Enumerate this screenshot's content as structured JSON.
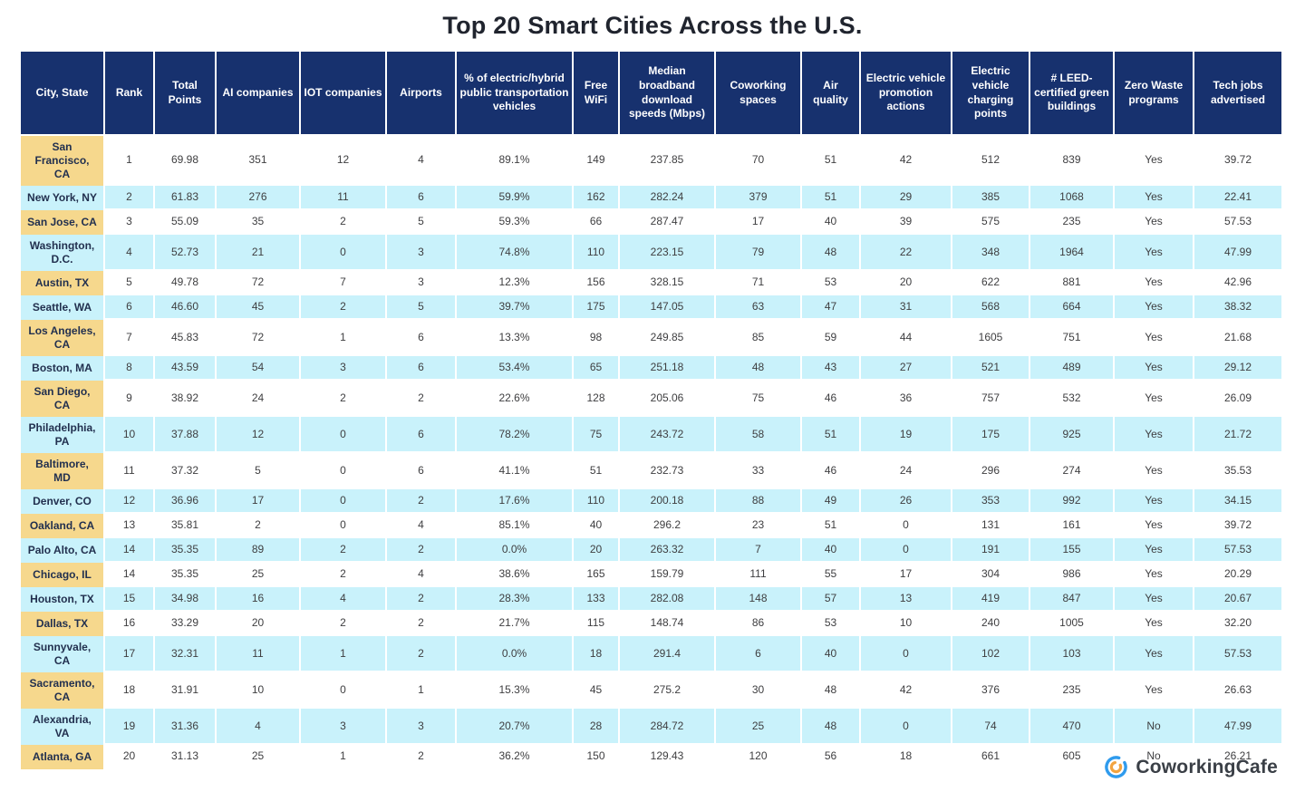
{
  "title": "Top 20 Smart Cities Across the U.S.",
  "brand": {
    "name": "CoworkingCafe"
  },
  "icons": {
    "logo": "coworkingcafe-logo"
  },
  "colors": {
    "header_bg": "#17316e",
    "city_column_bg": "#f6d88d",
    "row_alt_bg": "#c9f2fb",
    "row_bg": "#ffffff",
    "logo_blue": "#2f9bed",
    "logo_orange": "#f2a440"
  },
  "chart_data": {
    "type": "table",
    "title": "Top 20 Smart Cities Across the U.S.",
    "columns": [
      "City, State",
      "Rank",
      "Total Points",
      "AI companies",
      "IOT companies",
      "Airports",
      "% of electric/hybrid public transportation vehicles",
      "Free WiFi",
      "Median broadband download speeds (Mbps)",
      "Coworking spaces",
      "Air quality",
      "Electric vehicle promotion actions",
      "Electric vehicle charging points",
      "# LEED-certified green buildings",
      "Zero Waste programs",
      "Tech jobs advertised"
    ],
    "rows": [
      [
        "San Francisco, CA",
        "1",
        "69.98",
        "351",
        "12",
        "4",
        "89.1%",
        "149",
        "237.85",
        "70",
        "51",
        "42",
        "512",
        "839",
        "Yes",
        "39.72"
      ],
      [
        "New York, NY",
        "2",
        "61.83",
        "276",
        "11",
        "6",
        "59.9%",
        "162",
        "282.24",
        "379",
        "51",
        "29",
        "385",
        "1068",
        "Yes",
        "22.41"
      ],
      [
        "San Jose, CA",
        "3",
        "55.09",
        "35",
        "2",
        "5",
        "59.3%",
        "66",
        "287.47",
        "17",
        "40",
        "39",
        "575",
        "235",
        "Yes",
        "57.53"
      ],
      [
        "Washington, D.C.",
        "4",
        "52.73",
        "21",
        "0",
        "3",
        "74.8%",
        "110",
        "223.15",
        "79",
        "48",
        "22",
        "348",
        "1964",
        "Yes",
        "47.99"
      ],
      [
        "Austin, TX",
        "5",
        "49.78",
        "72",
        "7",
        "3",
        "12.3%",
        "156",
        "328.15",
        "71",
        "53",
        "20",
        "622",
        "881",
        "Yes",
        "42.96"
      ],
      [
        "Seattle, WA",
        "6",
        "46.60",
        "45",
        "2",
        "5",
        "39.7%",
        "175",
        "147.05",
        "63",
        "47",
        "31",
        "568",
        "664",
        "Yes",
        "38.32"
      ],
      [
        "Los Angeles, CA",
        "7",
        "45.83",
        "72",
        "1",
        "6",
        "13.3%",
        "98",
        "249.85",
        "85",
        "59",
        "44",
        "1605",
        "751",
        "Yes",
        "21.68"
      ],
      [
        "Boston, MA",
        "8",
        "43.59",
        "54",
        "3",
        "6",
        "53.4%",
        "65",
        "251.18",
        "48",
        "43",
        "27",
        "521",
        "489",
        "Yes",
        "29.12"
      ],
      [
        "San Diego, CA",
        "9",
        "38.92",
        "24",
        "2",
        "2",
        "22.6%",
        "128",
        "205.06",
        "75",
        "46",
        "36",
        "757",
        "532",
        "Yes",
        "26.09"
      ],
      [
        "Philadelphia, PA",
        "10",
        "37.88",
        "12",
        "0",
        "6",
        "78.2%",
        "75",
        "243.72",
        "58",
        "51",
        "19",
        "175",
        "925",
        "Yes",
        "21.72"
      ],
      [
        "Baltimore, MD",
        "11",
        "37.32",
        "5",
        "0",
        "6",
        "41.1%",
        "51",
        "232.73",
        "33",
        "46",
        "24",
        "296",
        "274",
        "Yes",
        "35.53"
      ],
      [
        "Denver, CO",
        "12",
        "36.96",
        "17",
        "0",
        "2",
        "17.6%",
        "110",
        "200.18",
        "88",
        "49",
        "26",
        "353",
        "992",
        "Yes",
        "34.15"
      ],
      [
        "Oakland, CA",
        "13",
        "35.81",
        "2",
        "0",
        "4",
        "85.1%",
        "40",
        "296.2",
        "23",
        "51",
        "0",
        "131",
        "161",
        "Yes",
        "39.72"
      ],
      [
        "Palo Alto, CA",
        "14",
        "35.35",
        "89",
        "2",
        "2",
        "0.0%",
        "20",
        "263.32",
        "7",
        "40",
        "0",
        "191",
        "155",
        "Yes",
        "57.53"
      ],
      [
        "Chicago, IL",
        "14",
        "35.35",
        "25",
        "2",
        "4",
        "38.6%",
        "165",
        "159.79",
        "111",
        "55",
        "17",
        "304",
        "986",
        "Yes",
        "20.29"
      ],
      [
        "Houston, TX",
        "15",
        "34.98",
        "16",
        "4",
        "2",
        "28.3%",
        "133",
        "282.08",
        "148",
        "57",
        "13",
        "419",
        "847",
        "Yes",
        "20.67"
      ],
      [
        "Dallas, TX",
        "16",
        "33.29",
        "20",
        "2",
        "2",
        "21.7%",
        "115",
        "148.74",
        "86",
        "53",
        "10",
        "240",
        "1005",
        "Yes",
        "32.20"
      ],
      [
        "Sunnyvale, CA",
        "17",
        "32.31",
        "11",
        "1",
        "2",
        "0.0%",
        "18",
        "291.4",
        "6",
        "40",
        "0",
        "102",
        "103",
        "Yes",
        "57.53"
      ],
      [
        "Sacramento, CA",
        "18",
        "31.91",
        "10",
        "0",
        "1",
        "15.3%",
        "45",
        "275.2",
        "30",
        "48",
        "42",
        "376",
        "235",
        "Yes",
        "26.63"
      ],
      [
        "Alexandria, VA",
        "19",
        "31.36",
        "4",
        "3",
        "3",
        "20.7%",
        "28",
        "284.72",
        "25",
        "48",
        "0",
        "74",
        "470",
        "No",
        "47.99"
      ],
      [
        "Atlanta, GA",
        "20",
        "31.13",
        "25",
        "1",
        "2",
        "36.2%",
        "150",
        "129.43",
        "120",
        "56",
        "18",
        "661",
        "605",
        "No",
        "26.21"
      ]
    ]
  }
}
